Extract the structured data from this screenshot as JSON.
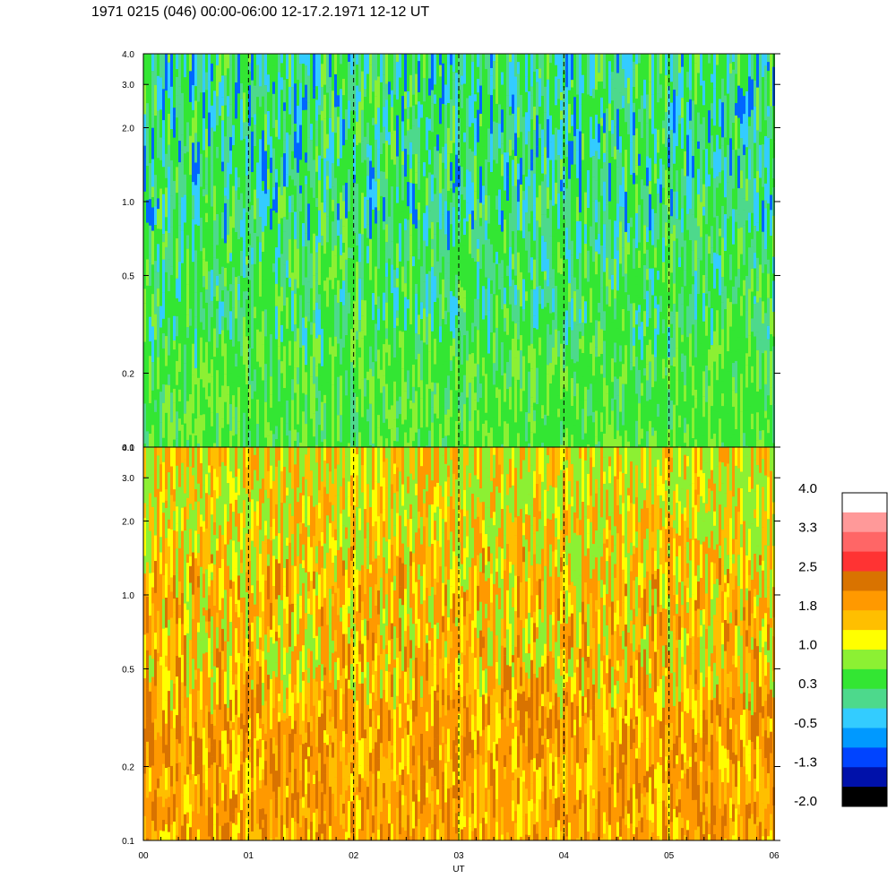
{
  "title": "1971 0215 (046) 00:00-06:00 12-17.2.1971  12-12 UT",
  "chart_data": {
    "type": "heatmap",
    "panels": [
      {
        "name": "top",
        "dominant_colors": [
          "#33e633",
          "#4dd98c",
          "#8cf033",
          "#33ccff",
          "#0066ff"
        ]
      },
      {
        "name": "bottom",
        "dominant_colors": [
          "#ff9900",
          "#ffbf00",
          "#d97300",
          "#8cf033",
          "#ffff00"
        ]
      }
    ],
    "x": {
      "label": "UT",
      "ticks": [
        "00",
        "01",
        "02",
        "03",
        "04",
        "05",
        "06"
      ],
      "range": [
        0,
        6
      ],
      "dashed_gridlines_at": [
        1,
        2,
        3,
        4,
        5
      ]
    },
    "y": {
      "scale": "log",
      "range": [
        0.1,
        4.0
      ],
      "ticks": [
        {
          "value": 0.1,
          "label": "0.1"
        },
        {
          "value": 0.2,
          "label": "0.2"
        },
        {
          "value": 0.5,
          "label": "0.5"
        },
        {
          "value": 1.0,
          "label": "1.0"
        },
        {
          "value": 2.0,
          "label": "2.0"
        },
        {
          "value": 3.0,
          "label": "3.0"
        },
        {
          "value": 4.0,
          "label": "4.0"
        }
      ]
    },
    "colorbar": {
      "labels": [
        "4.0",
        "3.3",
        "2.5",
        "1.8",
        "1.0",
        "0.3",
        "-0.5",
        "-1.3",
        "-2.0"
      ],
      "colors": [
        "#ffffff",
        "#ff9999",
        "#ff6666",
        "#ff3333",
        "#d97300",
        "#ff9900",
        "#ffbf00",
        "#ffff00",
        "#8cf033",
        "#33e633",
        "#4dd98c",
        "#33ccff",
        "#0099ff",
        "#0044ff",
        "#0011aa",
        "#000000"
      ]
    }
  }
}
